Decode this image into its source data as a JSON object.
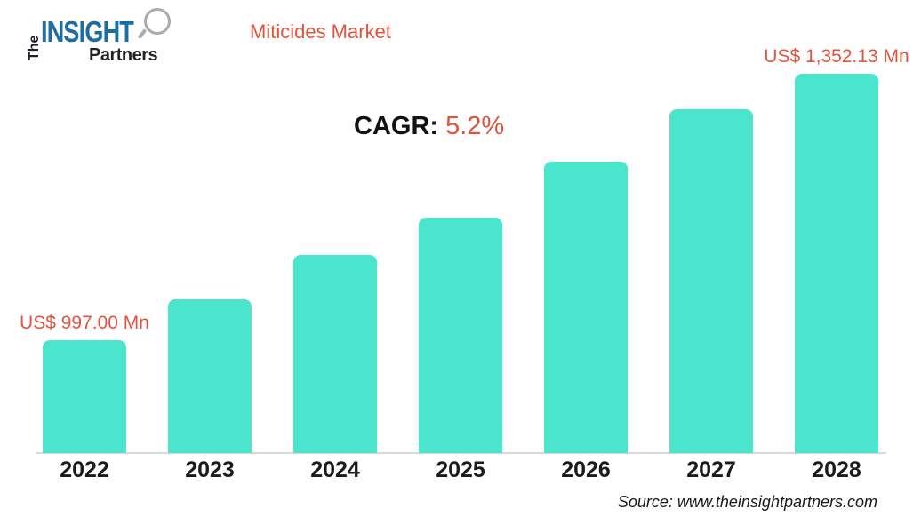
{
  "logo": {
    "the": "The",
    "insight": "INSIGHT",
    "partners": "Partners"
  },
  "header": {
    "title": "Miticides Market"
  },
  "cagr": {
    "label": "CAGR:",
    "value": "5.2%"
  },
  "footer": {
    "source": "Source: www.theinsightpartners.com"
  },
  "colors": {
    "bar": "#4be5ce",
    "accent": "#e0543e",
    "axis_line": "#d9d9d9",
    "logo_blue": "#1c6da4",
    "text_dark": "#1a1a1a"
  },
  "chart_data": {
    "type": "bar",
    "title": "Miticides Market",
    "categories": [
      "2022",
      "2023",
      "2024",
      "2025",
      "2026",
      "2027",
      "2028"
    ],
    "values": [
      997.0,
      1051.5,
      1110.6,
      1160.4,
      1234.9,
      1304.8,
      1352.13
    ],
    "unit": "US$ Mn",
    "data_labels": {
      "2022": "US$ 997.00 Mn",
      "2028": "US$ 1,352.13 Mn"
    },
    "cagr": "5.2%",
    "ylim": [
      846.7,
      1352.13
    ],
    "xlabel": "",
    "ylabel": "",
    "grid": false,
    "legend": false
  }
}
